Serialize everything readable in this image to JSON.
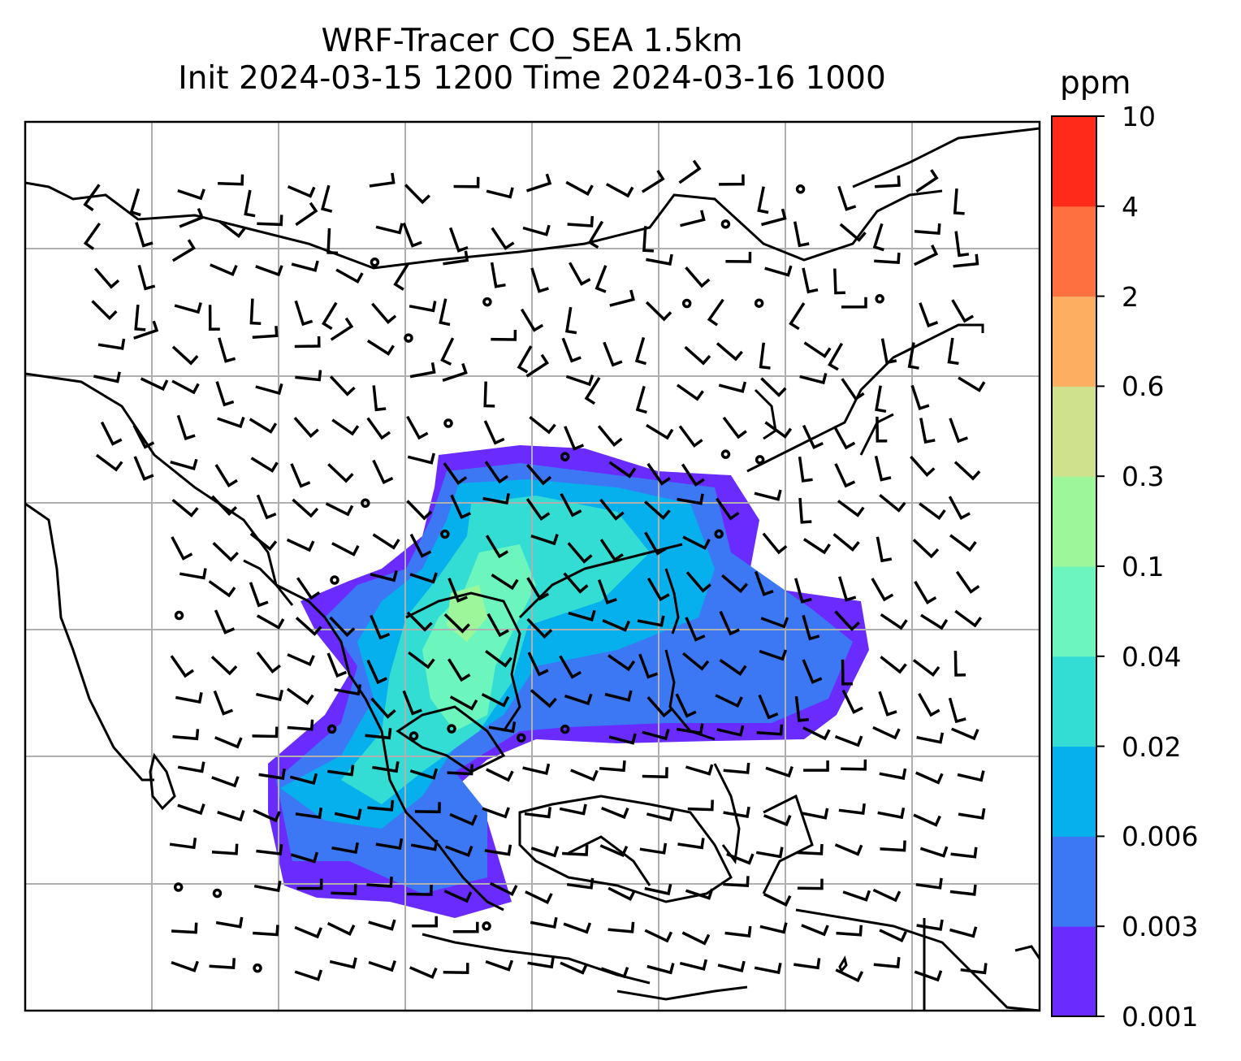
{
  "title": {
    "line1": "WRF-Tracer CO_SEA 1.5km",
    "line2": "Init 2024-03-15 1200 Time 2024-03-16 1000"
  },
  "colorbar": {
    "unit": "ppm",
    "ticks": [
      "0.001",
      "0.003",
      "0.006",
      "0.02",
      "0.04",
      "0.1",
      "0.3",
      "0.6",
      "2",
      "4",
      "10"
    ],
    "colors": [
      "#6a2bff",
      "#3c78f4",
      "#06b0ec",
      "#33ddd4",
      "#6cf6be",
      "#9df79a",
      "#cfe18c",
      "#fdae61",
      "#ff7040",
      "#ff2a1a"
    ]
  },
  "map": {
    "region": "South-East Asia",
    "features": [
      "coastlines",
      "country-borders",
      "lat-lon-gridlines",
      "wind-barbs",
      "calm-wind-circles",
      "co-tracer-filled-contours"
    ]
  }
}
